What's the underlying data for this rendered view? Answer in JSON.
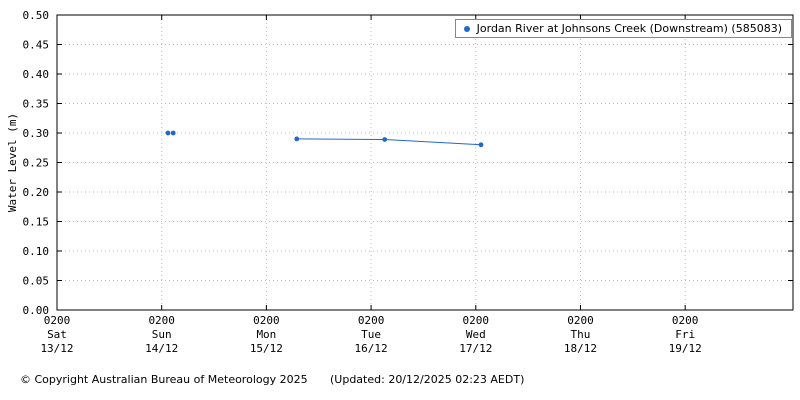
{
  "chart_data": {
    "type": "line",
    "title": "",
    "xlabel": "",
    "ylabel": "Water Level (m)",
    "ylim": [
      0.0,
      0.5
    ],
    "ytick_step": 0.05,
    "x_span_days": 7.03,
    "grid": true,
    "legend_position": "top-right",
    "x_ticks": [
      {
        "time": "0200",
        "day": "Sat",
        "date": "13/12"
      },
      {
        "time": "0200",
        "day": "Sun",
        "date": "14/12"
      },
      {
        "time": "0200",
        "day": "Mon",
        "date": "15/12"
      },
      {
        "time": "0200",
        "day": "Tue",
        "date": "16/12"
      },
      {
        "time": "0200",
        "day": "Wed",
        "date": "17/12"
      },
      {
        "time": "0200",
        "day": "Thu",
        "date": "18/12"
      },
      {
        "time": "0200",
        "day": "Fri",
        "date": "19/12"
      }
    ],
    "series": [
      {
        "name": "Jordan River at Johnsons Creek  (Downstream) (585083)",
        "color": "#2268cc",
        "marker": "dot",
        "segments": [
          {
            "connect": false,
            "points": [
              {
                "day_offset": 1.06,
                "value": 0.3
              },
              {
                "day_offset": 1.11,
                "value": 0.3
              }
            ]
          },
          {
            "connect": true,
            "points": [
              {
                "day_offset": 2.29,
                "value": 0.29
              },
              {
                "day_offset": 3.13,
                "value": 0.289
              },
              {
                "day_offset": 4.05,
                "value": 0.28
              }
            ]
          }
        ]
      }
    ]
  },
  "footer": {
    "copyright": "© Copyright Australian Bureau of Meteorology 2025",
    "updated": "(Updated: 20/12/2025 02:23 AEDT)"
  }
}
